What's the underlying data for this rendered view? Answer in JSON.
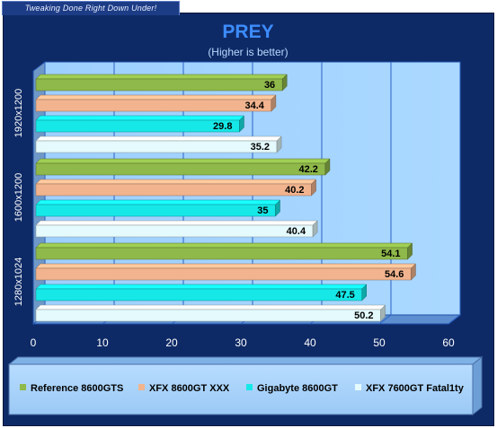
{
  "banner": {
    "text": "Tweaking Done Right Down Under!"
  },
  "chart_data": {
    "type": "bar",
    "orientation": "horizontal",
    "title": "PREY",
    "subtitle": "(Higher is better)",
    "categories": [
      "1920x1200",
      "1600x1200",
      "1280x1024"
    ],
    "xlim": [
      0,
      60
    ],
    "xticks": [
      0,
      10,
      20,
      30,
      40,
      50,
      60
    ],
    "grid": true,
    "legend_position": "bottom",
    "series": [
      {
        "name": "Reference 8600GTS",
        "color": "#8fb94a",
        "values": [
          36,
          42.2,
          54.1
        ]
      },
      {
        "name": "XFX 8600GT XXX",
        "color": "#f2b48e",
        "values": [
          34.4,
          40.2,
          54.6
        ]
      },
      {
        "name": "Gigabyte  8600GT",
        "color": "#16e8e8",
        "values": [
          29.8,
          35,
          47.5
        ]
      },
      {
        "name": "XFX 7600GT Fatal1ty",
        "color": "#e4fafc",
        "values": [
          35.2,
          40.4,
          50.2
        ]
      }
    ]
  }
}
